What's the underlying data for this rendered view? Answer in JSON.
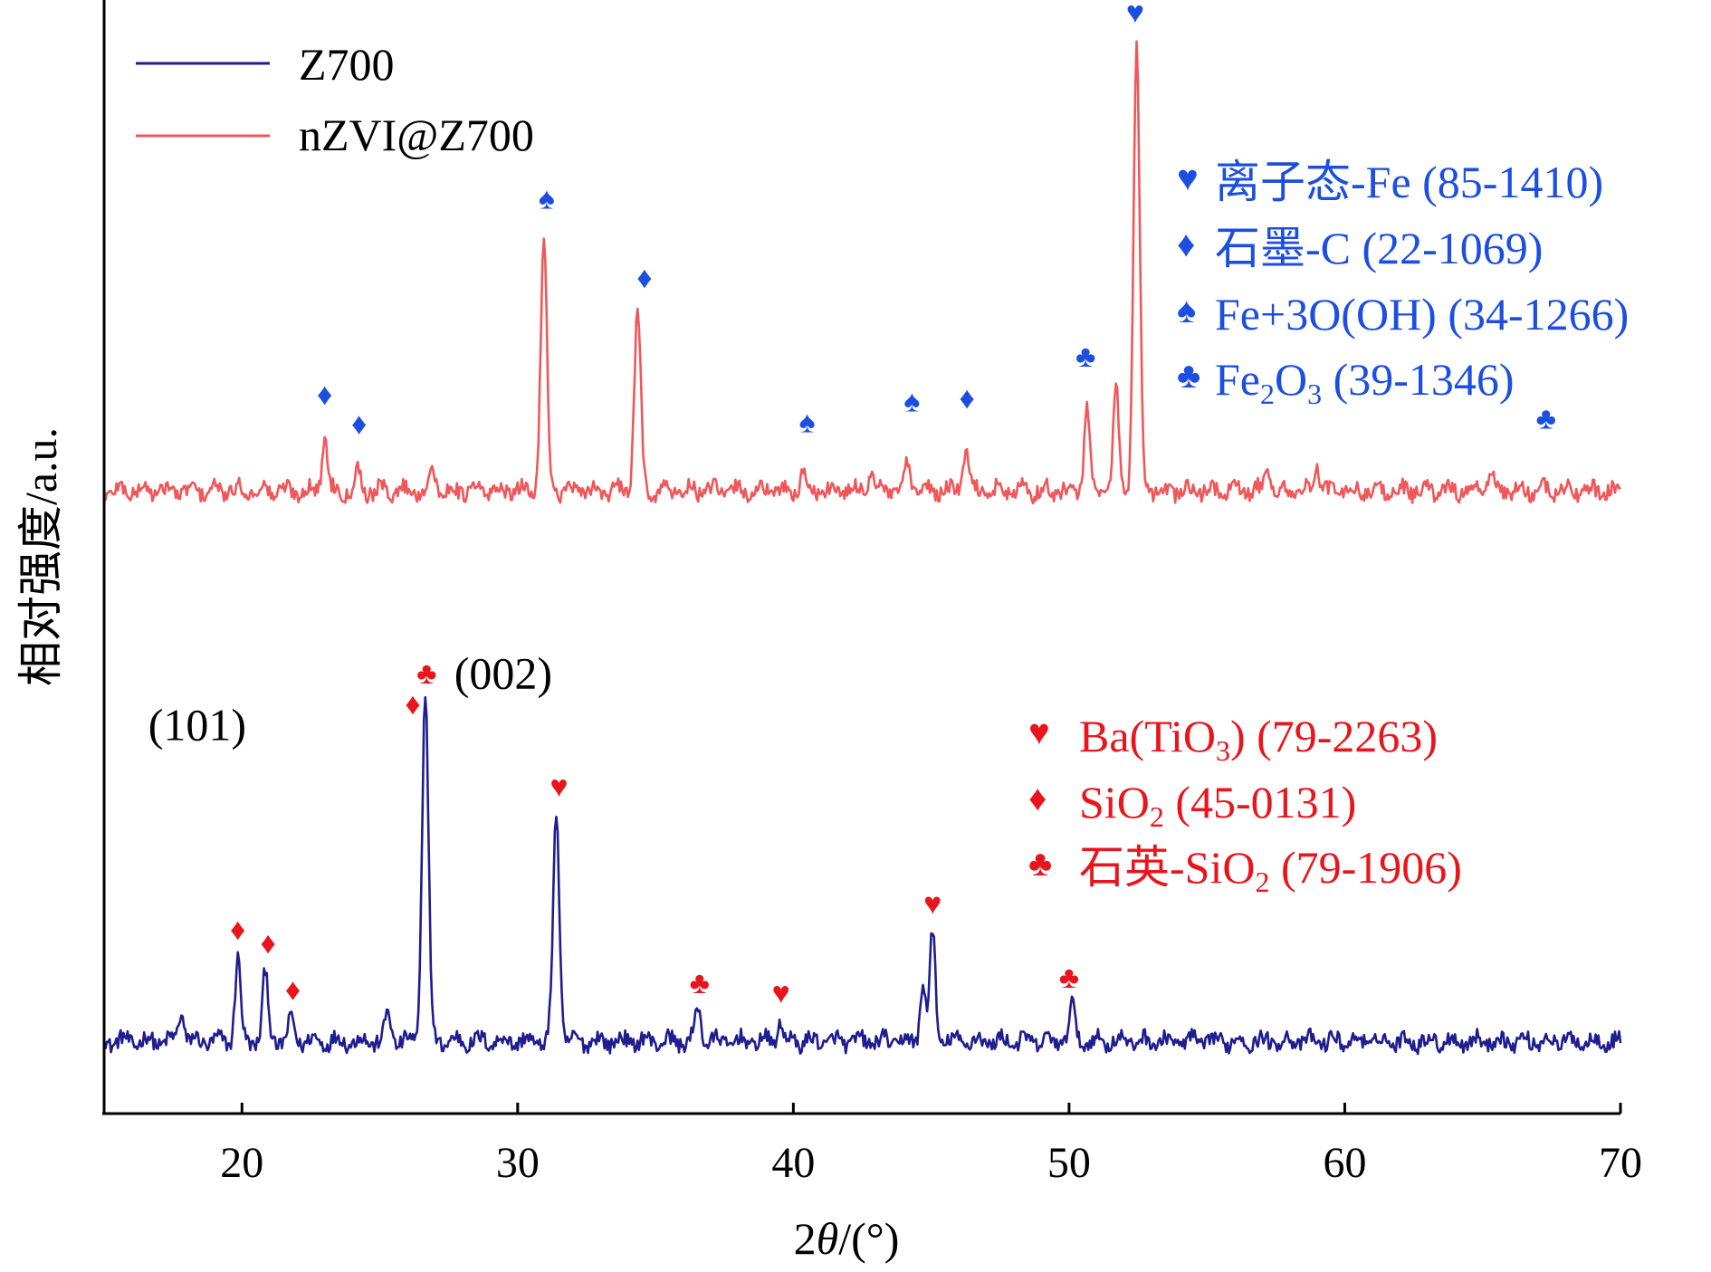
{
  "chart_data": {
    "type": "line",
    "title": "",
    "xlabel_prefix": "2",
    "xlabel_theta": "θ",
    "xlabel_suffix": "/(°)",
    "ylabel": "相对强度/a.u.",
    "xlim": [
      15,
      70
    ],
    "xticks": [
      20,
      30,
      40,
      50,
      60,
      70
    ],
    "colors": {
      "z700": "#1f1d8f",
      "nzvi": "#f0575a",
      "blue_marker": "#1c4fe0",
      "red_marker": "#e8161c",
      "axis": "#000000"
    },
    "legend": [
      {
        "name": "Z700",
        "color": "#1f1d8f"
      },
      {
        "name": "nZVI@Z700",
        "color": "#f0575a"
      }
    ],
    "series": [
      {
        "name": "Z700",
        "baseline": 0,
        "peaks": [
          {
            "x": 17.8,
            "h": 0.18
          },
          {
            "x": 19.85,
            "h": 0.48
          },
          {
            "x": 20.85,
            "h": 0.4
          },
          {
            "x": 21.8,
            "h": 0.13
          },
          {
            "x": 25.3,
            "h": 0.17
          },
          {
            "x": 26.65,
            "h": 2.05
          },
          {
            "x": 31.4,
            "h": 1.32
          },
          {
            "x": 36.55,
            "h": 0.2
          },
          {
            "x": 39.5,
            "h": 0.1
          },
          {
            "x": 44.7,
            "h": 0.33
          },
          {
            "x": 45.05,
            "h": 0.64
          },
          {
            "x": 50.1,
            "h": 0.22
          }
        ]
      },
      {
        "name": "nZVI@Z700",
        "baseline": 3.2,
        "peaks": [
          {
            "x": 23.0,
            "h": 0.32
          },
          {
            "x": 24.2,
            "h": 0.12
          },
          {
            "x": 26.9,
            "h": 0.12
          },
          {
            "x": 30.95,
            "h": 1.45
          },
          {
            "x": 34.35,
            "h": 1.05
          },
          {
            "x": 40.35,
            "h": 0.1
          },
          {
            "x": 42.8,
            "h": 0.12
          },
          {
            "x": 44.15,
            "h": 0.15
          },
          {
            "x": 46.25,
            "h": 0.25
          },
          {
            "x": 50.65,
            "h": 0.48
          },
          {
            "x": 51.7,
            "h": 0.6
          },
          {
            "x": 52.45,
            "h": 2.55
          },
          {
            "x": 57.2,
            "h": 0.12
          },
          {
            "x": 59.0,
            "h": 0.15
          },
          {
            "x": 65.3,
            "h": 0.12
          }
        ]
      }
    ],
    "annotations": [
      {
        "text": "(101)",
        "x": 16.6,
        "y": 1.75
      },
      {
        "text": "(002)",
        "x": 27.7,
        "y": 2.05
      }
    ],
    "markers": [
      {
        "symbol": "♦",
        "x": 23.0,
        "y": 3.7,
        "series": "nZVI@Z700",
        "color": "#1c4fe0"
      },
      {
        "symbol": "♦",
        "x": 24.25,
        "y": 3.53,
        "series": "nZVI@Z700",
        "color": "#1c4fe0"
      },
      {
        "symbol": "♠",
        "x": 31.05,
        "y": 4.84,
        "series": "nZVI@Z700",
        "color": "#1c4fe0"
      },
      {
        "symbol": "♦",
        "x": 34.6,
        "y": 4.38,
        "series": "nZVI@Z700",
        "color": "#1c4fe0"
      },
      {
        "symbol": "♠",
        "x": 40.5,
        "y": 3.54,
        "series": "nZVI@Z700",
        "color": "#1c4fe0"
      },
      {
        "symbol": "♠",
        "x": 44.3,
        "y": 3.66,
        "series": "nZVI@Z700",
        "color": "#1c4fe0"
      },
      {
        "symbol": "♦",
        "x": 46.3,
        "y": 3.68,
        "series": "nZVI@Z700",
        "color": "#1c4fe0"
      },
      {
        "symbol": "♣",
        "x": 50.6,
        "y": 3.92,
        "series": "nZVI@Z700",
        "color": "#1c4fe0"
      },
      {
        "symbol": "♥",
        "x": 52.4,
        "y": 5.92,
        "series": "nZVI@Z700",
        "color": "#1c4fe0"
      },
      {
        "symbol": "♣",
        "x": 67.3,
        "y": 3.56,
        "series": "nZVI@Z700",
        "color": "#1c4fe0"
      },
      {
        "symbol": "♦",
        "x": 19.85,
        "y": 0.59,
        "series": "Z700",
        "color": "#e8161c"
      },
      {
        "symbol": "♦",
        "x": 20.95,
        "y": 0.51,
        "series": "Z700",
        "color": "#e8161c"
      },
      {
        "symbol": "♦",
        "x": 21.85,
        "y": 0.24,
        "series": "Z700",
        "color": "#e8161c"
      },
      {
        "symbol": "♦",
        "x": 26.2,
        "y": 1.9,
        "series": "Z700",
        "color": "#e8161c"
      },
      {
        "symbol": "♣",
        "x": 26.7,
        "y": 2.08,
        "series": "Z700",
        "color": "#e8161c"
      },
      {
        "symbol": "♥",
        "x": 31.5,
        "y": 1.42,
        "series": "Z700",
        "color": "#e8161c"
      },
      {
        "symbol": "♣",
        "x": 36.6,
        "y": 0.28,
        "series": "Z700",
        "color": "#e8161c"
      },
      {
        "symbol": "♥",
        "x": 39.55,
        "y": 0.22,
        "series": "Z700",
        "color": "#e8161c"
      },
      {
        "symbol": "♥",
        "x": 45.05,
        "y": 0.74,
        "series": "Z700",
        "color": "#e8161c"
      },
      {
        "symbol": "♣",
        "x": 50.0,
        "y": 0.31,
        "series": "Z700",
        "color": "#e8161c"
      }
    ],
    "phase_legend_blue": [
      {
        "symbol": "♥",
        "label": "离子态-Fe (85-1410)"
      },
      {
        "symbol": "♦",
        "label": "石墨-C (22-1069)"
      },
      {
        "symbol": "♠",
        "label": "Fe+3O(OH) (34-1266)"
      },
      {
        "symbol": "♣",
        "label_main": "Fe",
        "label_sub1": "2",
        "label_mid": "O",
        "label_sub2": "3",
        "label_tail": " (39-1346)"
      }
    ],
    "phase_legend_red": [
      {
        "symbol": "♥",
        "label_main": "Ba(TiO",
        "label_sub": "3",
        "label_tail": ") (79-2263)"
      },
      {
        "symbol": "♦",
        "label_main": "SiO",
        "label_sub": "2",
        "label_tail": " (45-0131)"
      },
      {
        "symbol": "♣",
        "label_main": "石英-SiO",
        "label_sub": "2",
        "label_tail": " (79-1906)"
      }
    ]
  }
}
